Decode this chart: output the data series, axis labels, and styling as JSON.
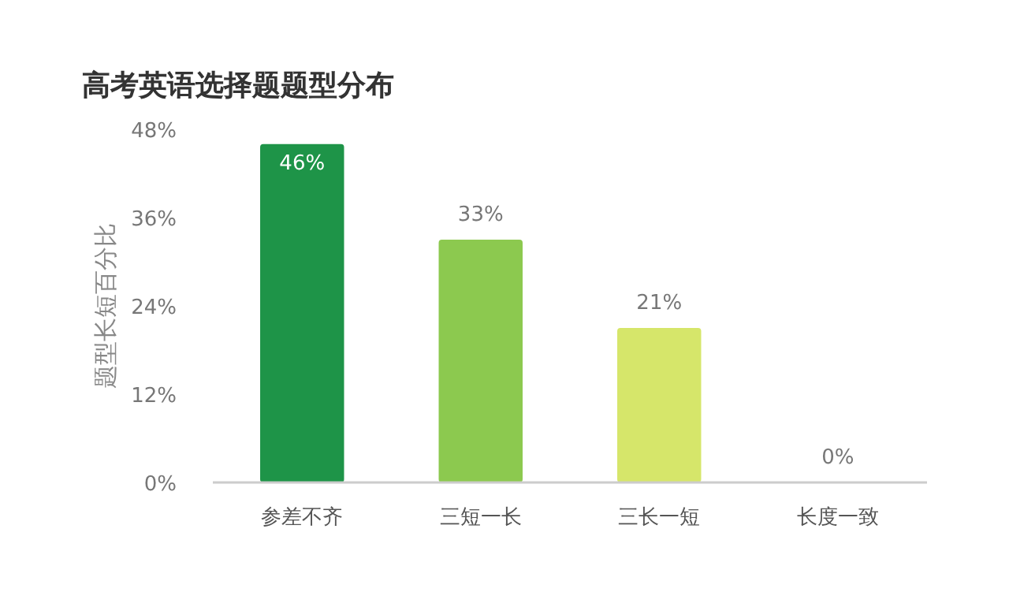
{
  "chart_data": {
    "type": "bar",
    "title": "高考英语选择题题型分布",
    "ylabel": "题型长短百分比",
    "categories": [
      "参差不齐",
      "三短一长",
      "三长一短",
      "长度一致"
    ],
    "values": [
      46,
      33,
      21,
      0
    ],
    "colors": [
      "#1e9448",
      "#8cc94f",
      "#d6e66a",
      "#d6e66a"
    ],
    "value_labels": [
      "46%",
      "33%",
      "21%",
      "0%"
    ],
    "ylim": [
      0,
      48
    ],
    "yticks": [
      {
        "value": 0,
        "label": "0%"
      },
      {
        "value": 12,
        "label": "12%"
      },
      {
        "value": 24,
        "label": "24%"
      },
      {
        "value": 36,
        "label": "36%"
      },
      {
        "value": 48,
        "label": "48%"
      }
    ]
  }
}
